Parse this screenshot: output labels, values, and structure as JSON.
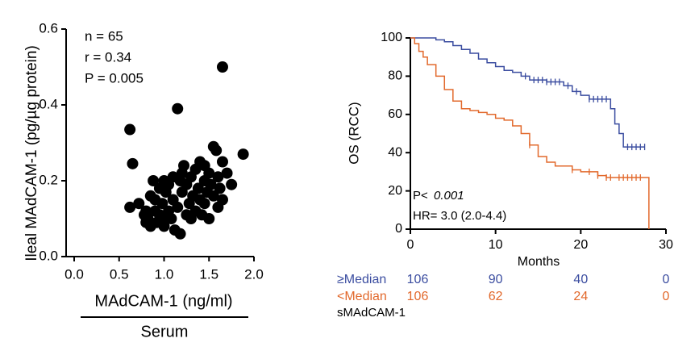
{
  "chart_data": [
    {
      "type": "scatter",
      "x": [
        0.62,
        1.15,
        1.65,
        0.65,
        0.62,
        0.72,
        0.78,
        0.8,
        0.82,
        0.85,
        0.85,
        0.88,
        0.9,
        0.9,
        0.92,
        0.95,
        0.95,
        0.98,
        1.0,
        1.0,
        1.02,
        1.05,
        1.05,
        1.08,
        1.1,
        1.1,
        1.12,
        1.15,
        1.18,
        1.2,
        1.2,
        1.22,
        1.25,
        1.25,
        1.28,
        1.3,
        1.3,
        1.32,
        1.35,
        1.35,
        1.38,
        1.4,
        1.4,
        1.42,
        1.45,
        1.45,
        1.48,
        1.5,
        1.5,
        1.52,
        1.55,
        1.55,
        1.58,
        1.6,
        1.6,
        1.62,
        1.65,
        1.65,
        1.7,
        1.75,
        1.88,
        0.8,
        0.98,
        1.18,
        1.45
      ],
      "values": [
        0.335,
        0.39,
        0.5,
        0.245,
        0.13,
        0.14,
        0.11,
        0.09,
        0.1,
        0.16,
        0.08,
        0.2,
        0.12,
        0.15,
        0.09,
        0.18,
        0.11,
        0.14,
        0.2,
        0.08,
        0.17,
        0.12,
        0.19,
        0.1,
        0.15,
        0.21,
        0.07,
        0.13,
        0.06,
        0.22,
        0.17,
        0.24,
        0.11,
        0.19,
        0.14,
        0.1,
        0.21,
        0.16,
        0.23,
        0.12,
        0.18,
        0.15,
        0.25,
        0.11,
        0.2,
        0.14,
        0.17,
        0.22,
        0.1,
        0.19,
        0.29,
        0.16,
        0.28,
        0.21,
        0.13,
        0.18,
        0.25,
        0.15,
        0.22,
        0.19,
        0.27,
        0.12,
        0.1,
        0.2,
        0.24
      ],
      "color": "#000000",
      "xlim": [
        0,
        2
      ],
      "xticks": [
        {
          "value": 0,
          "label": "0.0"
        },
        {
          "value": 0.5,
          "label": "0.5"
        },
        {
          "value": 1,
          "label": "1.0"
        },
        {
          "value": 1.5,
          "label": "1.5"
        },
        {
          "value": 2,
          "label": "2.0"
        }
      ],
      "ylim": [
        0,
        0.6
      ],
      "yticks": [
        {
          "value": 0,
          "label": "0.0"
        },
        {
          "value": 0.2,
          "label": "0.2"
        },
        {
          "value": 0.4,
          "label": "0.4"
        },
        {
          "value": 0.6,
          "label": "0.6"
        }
      ],
      "xlabel": "MAdCAM-1 (ng/ml)",
      "xgroup": "Serum",
      "ylabel": "Ileal MAdCAM-1 (pg/µg protein)",
      "annotations": [
        "n = 65",
        "r = 0.34",
        "P = 0.005"
      ]
    },
    {
      "type": "step",
      "series": [
        {
          "name": "≥Median",
          "color": "#3b4da0",
          "x": [
            0,
            2,
            3,
            4,
            5,
            6,
            7,
            8,
            9,
            10,
            11,
            12,
            13,
            14,
            16,
            18,
            19,
            20,
            21,
            23,
            23.5,
            24,
            24.5,
            25,
            27.5
          ],
          "values": [
            100,
            100,
            99,
            98,
            96,
            94,
            92,
            89,
            87,
            85,
            83,
            82,
            80,
            78,
            77,
            75,
            72,
            70,
            68,
            68,
            63,
            55,
            50,
            43,
            43
          ],
          "censored": [
            13.5,
            14.5,
            15,
            15.5,
            16,
            16.5,
            17,
            17.5,
            18.5,
            19.5,
            21,
            21.5,
            22,
            22.5,
            23,
            25.5,
            26,
            26.5,
            27,
            27.5
          ]
        },
        {
          "name": "<Median",
          "color": "#e2692c",
          "x": [
            0,
            0.5,
            1,
            1.5,
            2,
            3,
            4,
            5,
            6,
            7,
            8,
            9,
            10,
            11,
            12,
            13,
            14,
            15,
            16,
            17,
            19,
            20,
            22,
            23,
            28,
            28
          ],
          "values": [
            100,
            97,
            93,
            90,
            86,
            80,
            73,
            67,
            63,
            62,
            61,
            60,
            58,
            57,
            54,
            50,
            44,
            38,
            35,
            33,
            31,
            30,
            28,
            27,
            27,
            0
          ],
          "censored": [
            14,
            19,
            21,
            22,
            23,
            23.5,
            24.5,
            25,
            25.5,
            26,
            26.5,
            27
          ]
        }
      ],
      "xlim": [
        0,
        30
      ],
      "xticks": [
        0,
        10,
        20,
        30
      ],
      "ylim": [
        0,
        100
      ],
      "yticks": [
        0,
        20,
        40,
        60,
        80,
        100
      ],
      "xlabel": "Months",
      "ylabel": "OS (RCC)",
      "annotations": [
        "P<",
        "0.001",
        "HR= 3.0 (2.0-4.4)"
      ],
      "risk_table": {
        "title": "sMAdCAM-1",
        "rows": [
          [
            106,
            90,
            40,
            0
          ],
          [
            106,
            62,
            24,
            0
          ]
        ]
      }
    }
  ]
}
